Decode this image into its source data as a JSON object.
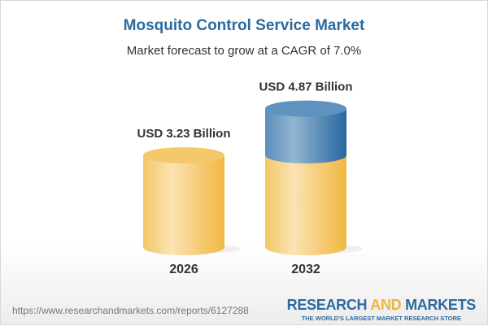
{
  "chart_data": {
    "type": "bar",
    "title": "Mosquito Control Service Market",
    "subtitle": "Market forecast to grow at a CAGR of 7.0%",
    "categories": [
      "2026",
      "2032"
    ],
    "values": [
      3.23,
      4.87
    ],
    "data_labels": [
      "USD 3.23 Billion",
      "USD 4.87 Billion"
    ],
    "unit": "USD Billion",
    "colors": {
      "base": "#f3c35a",
      "growth": "#3f7fb3",
      "title": "#2d6a9f"
    }
  },
  "footer": {
    "url": "https://www.researchandmarkets.com/reports/6127288",
    "logo_part1": "RESEARCH ",
    "logo_part2": "AND",
    "logo_part3": " MARKETS",
    "tagline": "THE WORLD'S LARGEST MARKET RESEARCH STORE"
  }
}
